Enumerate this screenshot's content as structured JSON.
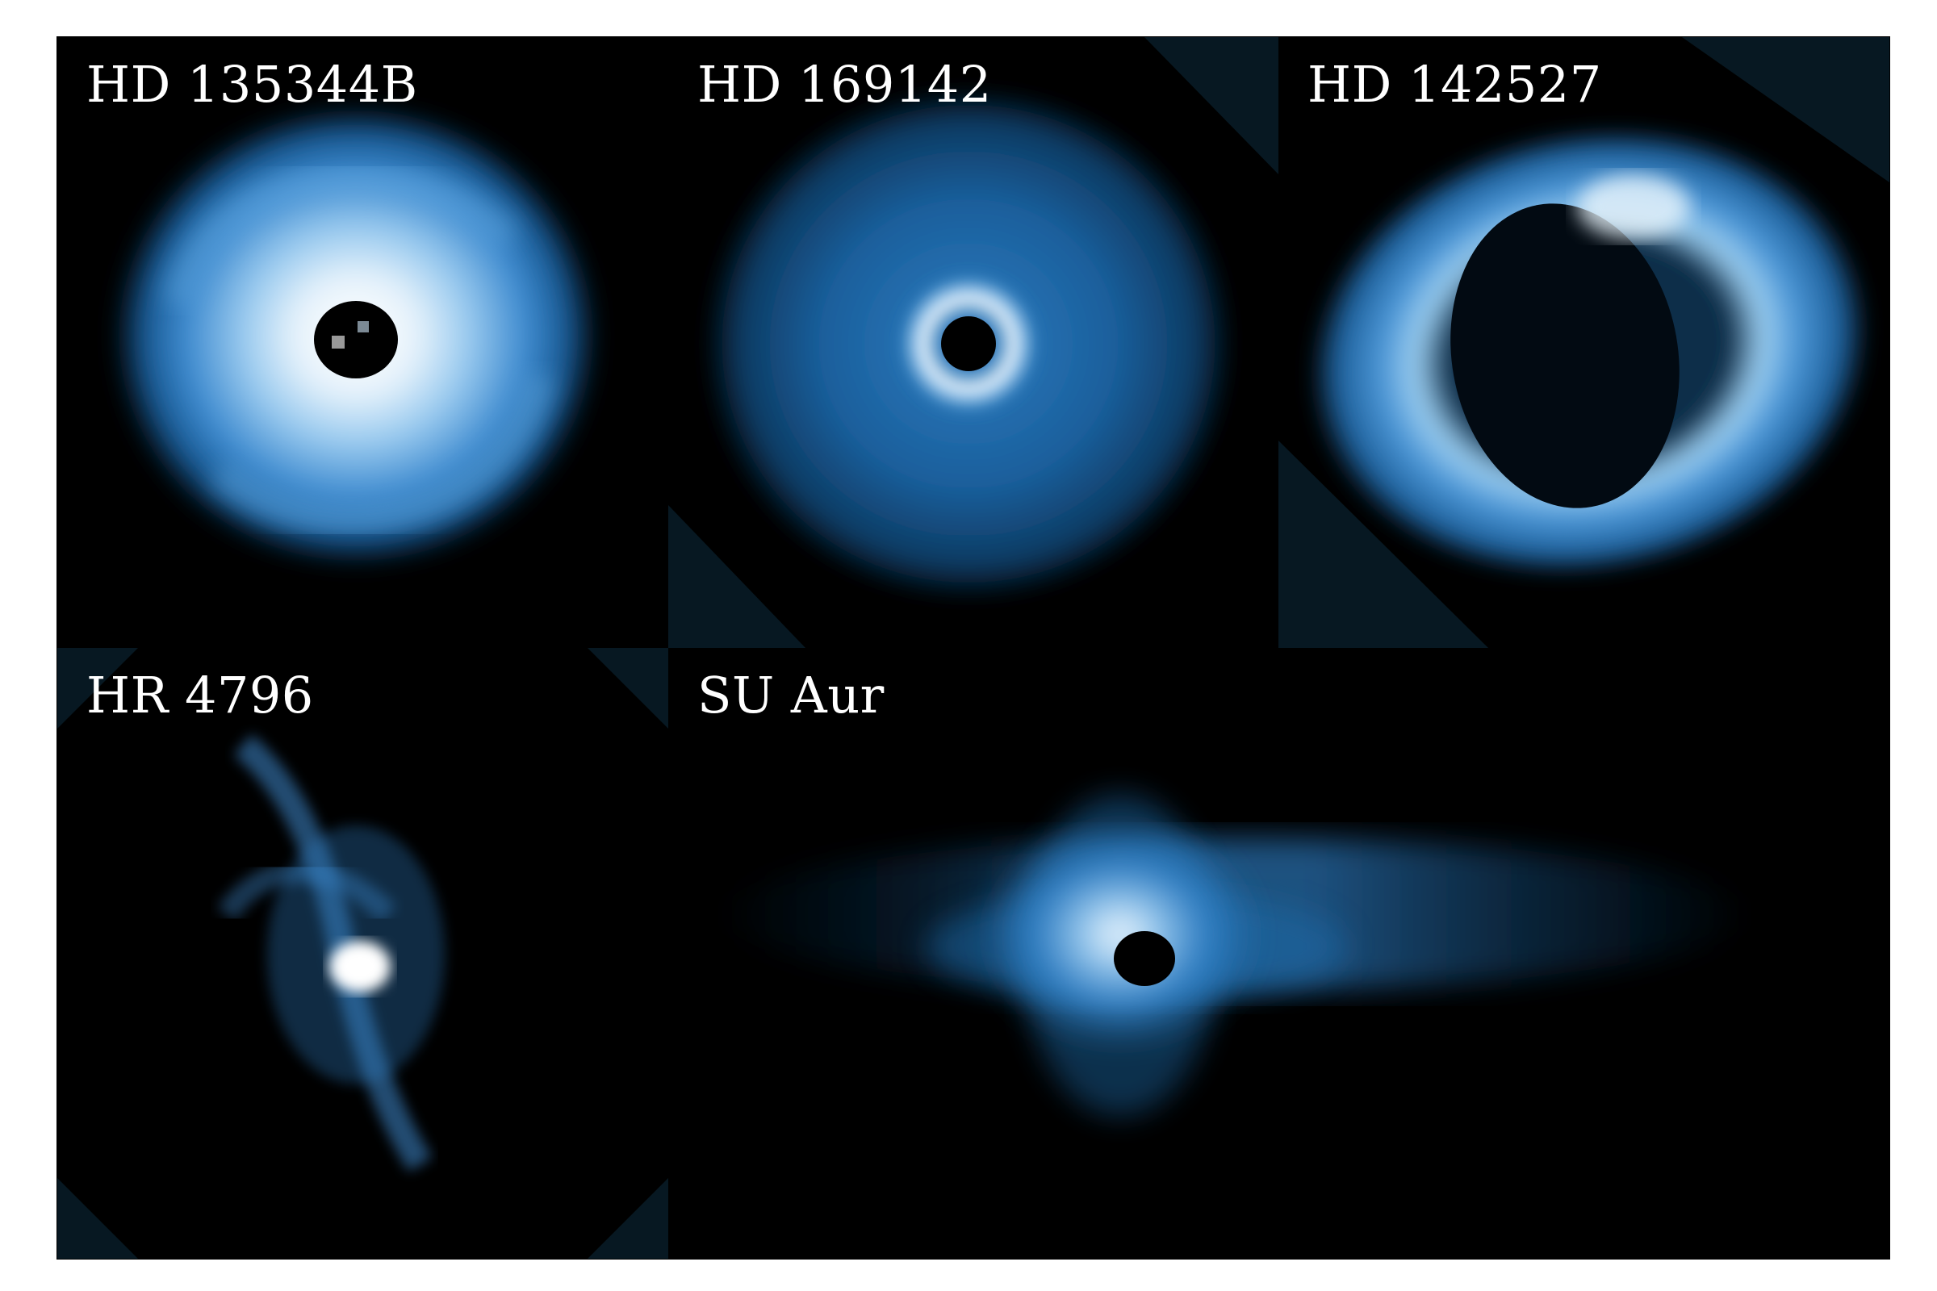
{
  "panels": [
    {
      "id": "hd135344b",
      "label": "HD 135344B"
    },
    {
      "id": "hd169142",
      "label": "HD 169142"
    },
    {
      "id": "hd142527",
      "label": "HD 142527"
    },
    {
      "id": "hr4796",
      "label": "HR 4796"
    },
    {
      "id": "suaur",
      "label": "SU Aur"
    }
  ],
  "colors": {
    "background": "#000000",
    "frame_fill": "#06141c",
    "disk_deep": "#0b3f6a",
    "disk_mid": "#2f7fc4",
    "disk_bright": "#9fd0f5",
    "disk_peak": "#ffffff",
    "divider": "#8a8f94"
  }
}
